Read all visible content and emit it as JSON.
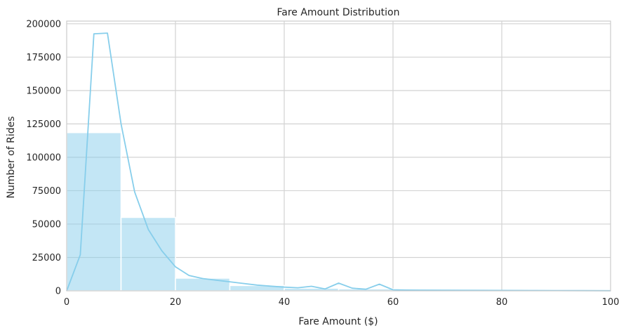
{
  "chart_data": {
    "type": "bar",
    "title": "Fare Amount Distribution",
    "xlabel": "Fare Amount ($)",
    "ylabel": "Number of Rides",
    "xlim": [
      0,
      100
    ],
    "ylim": [
      0,
      202000
    ],
    "grid": true,
    "x_ticks": [
      0,
      20,
      40,
      60,
      80,
      100
    ],
    "y_ticks": [
      0,
      25000,
      50000,
      75000,
      100000,
      125000,
      150000,
      175000,
      200000
    ],
    "colors": {
      "bar": "#87ceeb",
      "line": "#87ceeb",
      "grid": "#d3d3d3",
      "spine": "#cccccc"
    },
    "histogram": {
      "bins": [
        {
          "x0": 0,
          "x1": 10,
          "count": 118500
        },
        {
          "x0": 10,
          "x1": 20,
          "count": 55000
        },
        {
          "x0": 20,
          "x1": 30,
          "count": 9500
        },
        {
          "x0": 30,
          "x1": 40,
          "count": 4000
        },
        {
          "x0": 40,
          "x1": 50,
          "count": 2000
        },
        {
          "x0": 50,
          "x1": 60,
          "count": 1500
        },
        {
          "x0": 60,
          "x1": 70,
          "count": 500
        },
        {
          "x0": 70,
          "x1": 80,
          "count": 400
        },
        {
          "x0": 80,
          "x1": 90,
          "count": 400
        },
        {
          "x0": 90,
          "x1": 100,
          "count": 300
        }
      ]
    },
    "kde": {
      "x": [
        0,
        2.5,
        5,
        7.5,
        10,
        12.5,
        15,
        17.5,
        20,
        22.5,
        25,
        27.5,
        30,
        32.5,
        35,
        37.5,
        40,
        42.5,
        45,
        47.5,
        50,
        52.5,
        55,
        57.5,
        60,
        62.5,
        65,
        70,
        75,
        80,
        85,
        90,
        95,
        100
      ],
      "y": [
        0,
        27000,
        192500,
        193000,
        125000,
        74000,
        46000,
        30000,
        18000,
        11500,
        9200,
        8000,
        6800,
        5500,
        4300,
        3500,
        2800,
        2300,
        3400,
        1400,
        5800,
        2000,
        1200,
        5000,
        800,
        600,
        500,
        400,
        350,
        300,
        250,
        200,
        150,
        100
      ]
    }
  }
}
